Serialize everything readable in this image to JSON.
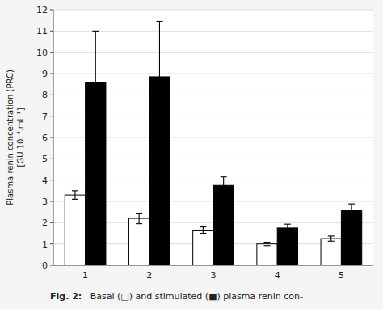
{
  "chart_data": {
    "type": "bar",
    "categories": [
      "1",
      "2",
      "3",
      "4",
      "5"
    ],
    "series": [
      {
        "color": "#ffffff",
        "values": [
          3.3,
          2.2,
          1.65,
          1.0,
          1.25
        ],
        "errors": [
          0.2,
          0.25,
          0.15,
          0.08,
          0.12
        ]
      },
      {
        "color": "#000000",
        "values": [
          8.6,
          8.85,
          3.75,
          1.75,
          2.6
        ],
        "errors": [
          2.4,
          2.6,
          0.4,
          0.18,
          0.28
        ]
      }
    ],
    "y_label": "Plasma renin concentration (PRC)\n[GU.10⁻⁴.ml⁻¹]",
    "caption": [
      "Fig. 2:",
      "   Basal (□) and stimulated (■) plasma renin con-"
    ],
    "ylim": [
      0,
      12
    ],
    "yticks": [
      0,
      1,
      2,
      3,
      4,
      5,
      6,
      7,
      8,
      9,
      10,
      11,
      12
    ],
    "grid": true
  }
}
